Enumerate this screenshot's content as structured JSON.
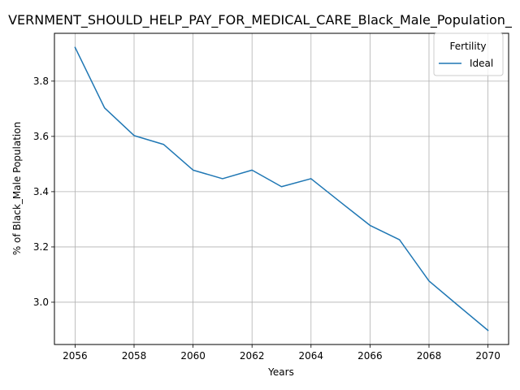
{
  "chart_data": {
    "type": "line",
    "title": "VERNMENT_SHOULD_HELP_PAY_FOR_MEDICAL_CARE_Black_Male_Population_",
    "xlabel": "Years",
    "ylabel": "% of Black_Male Population",
    "x": [
      2056,
      2057,
      2058,
      2059,
      2060,
      2061,
      2062,
      2063,
      2064,
      2065,
      2066,
      2067,
      2068,
      2069,
      2070
    ],
    "series": [
      {
        "name": "Ideal",
        "color": "#1f77b4",
        "values": [
          3.922,
          3.703,
          3.603,
          3.571,
          3.478,
          3.447,
          3.478,
          3.418,
          3.447,
          3.362,
          3.278,
          3.226,
          3.077,
          2.987,
          2.898
        ]
      }
    ],
    "xlim": [
      2055.3,
      2070.7
    ],
    "ylim": [
      2.847,
      3.973
    ],
    "xticks": [
      2056,
      2058,
      2060,
      2062,
      2064,
      2066,
      2068,
      2070
    ],
    "yticks": [
      3.0,
      3.2,
      3.4,
      3.6,
      3.8
    ],
    "ytick_labels": [
      "3.0",
      "3.2",
      "3.4",
      "3.6",
      "3.8"
    ],
    "grid": true,
    "legend": {
      "title": "Fertility",
      "placement": "top-right"
    }
  }
}
